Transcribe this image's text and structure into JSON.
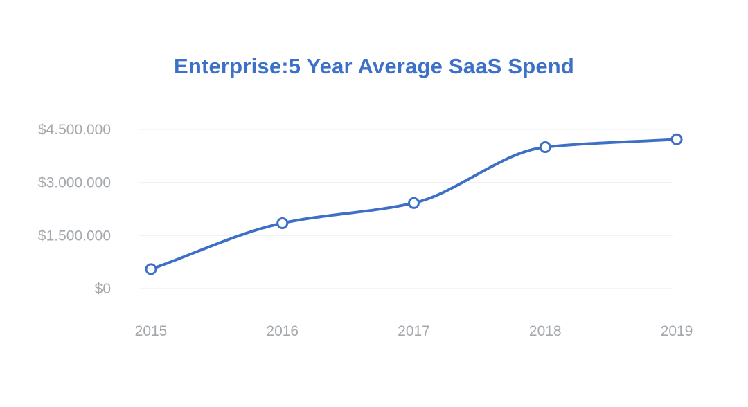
{
  "chart_data": {
    "type": "line",
    "title": "Enterprise:5 Year Average SaaS Spend",
    "xlabel": "",
    "ylabel": "",
    "categories": [
      "2015",
      "2016",
      "2017",
      "2018",
      "2019"
    ],
    "series": [
      {
        "name": "Average SaaS Spend",
        "values": [
          550000,
          1850000,
          2420000,
          4000000,
          4220000
        ]
      }
    ],
    "ylim": [
      0,
      4500000
    ],
    "yticks": [
      0,
      1500000,
      3000000,
      4500000
    ],
    "ytick_labels": [
      "$0",
      "$1.500.000",
      "$3.000.000",
      "$4.500.000"
    ],
    "grid": true,
    "smooth": true,
    "colors": {
      "title": "#3d71c8",
      "line": "#3d6fc6",
      "marker_fill": "#ffffff",
      "grid": "#eef0f3",
      "tick_text": "#a4a8ad"
    }
  }
}
